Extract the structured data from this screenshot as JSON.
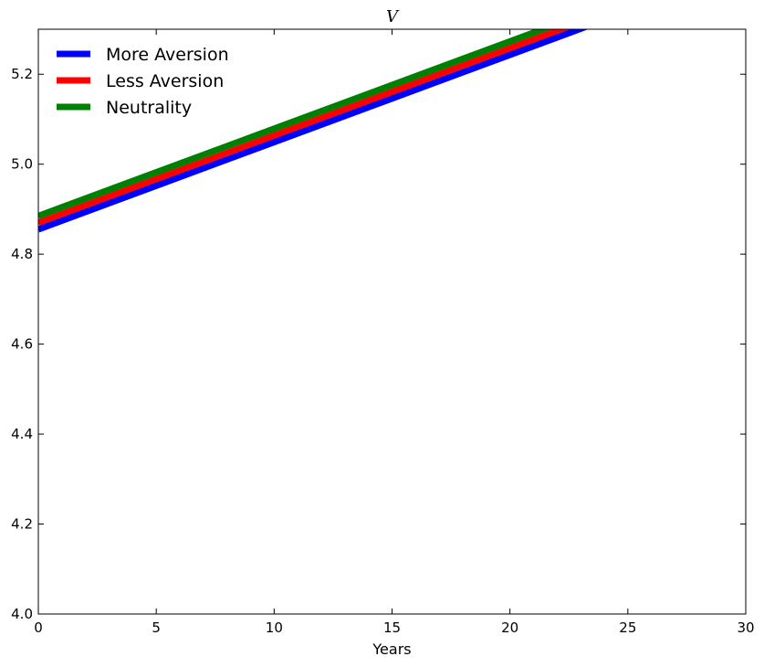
{
  "chart_data": {
    "type": "line",
    "title": "V",
    "xlabel": "Years",
    "ylabel": "",
    "xlim": [
      0,
      30
    ],
    "ylim": [
      4.0,
      5.3
    ],
    "xticks": [
      0,
      5,
      10,
      15,
      20,
      25,
      30
    ],
    "yticks": [
      4.0,
      4.2,
      4.4,
      4.6,
      4.8,
      5.0,
      5.2
    ],
    "grid": false,
    "legend_position": "top-left",
    "series": [
      {
        "name": "More Aversion",
        "color": "#0000ff",
        "x": [
          0,
          5,
          10,
          15,
          20,
          25,
          30
        ],
        "y": [
          4.855,
          4.952,
          5.049,
          5.146,
          5.243,
          5.34,
          5.437
        ]
      },
      {
        "name": "Less Aversion",
        "color": "#ff0000",
        "x": [
          0,
          5,
          10,
          15,
          20,
          25,
          30
        ],
        "y": [
          4.87,
          4.967,
          5.064,
          5.161,
          5.258,
          5.355,
          5.452
        ]
      },
      {
        "name": "Neutrality",
        "color": "#008000",
        "x": [
          0,
          5,
          10,
          15,
          20,
          25,
          30
        ],
        "y": [
          4.885,
          4.982,
          5.079,
          5.176,
          5.273,
          5.37,
          5.467
        ]
      }
    ]
  }
}
